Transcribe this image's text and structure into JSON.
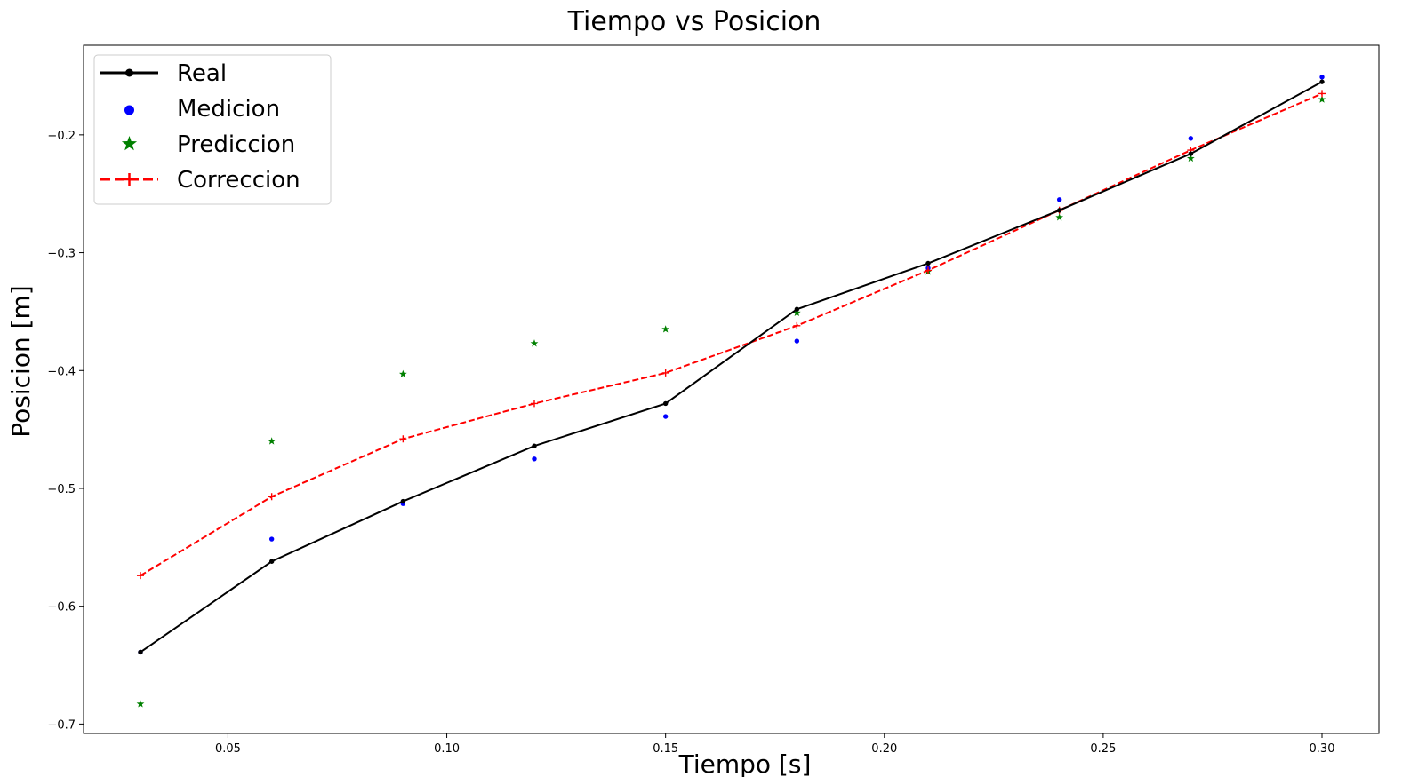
{
  "chart_data": {
    "type": "line",
    "title": "Tiempo vs Posicion",
    "xlabel": "Tiempo [s]",
    "ylabel": "Posicion [m]",
    "xlim": [
      0.017,
      0.313
    ],
    "ylim": [
      -0.708,
      -0.124
    ],
    "xticks": [
      0.05,
      0.1,
      0.15,
      0.2,
      0.25,
      0.3
    ],
    "xtick_labels": [
      "0.05",
      "0.10",
      "0.15",
      "0.20",
      "0.25",
      "0.30"
    ],
    "yticks": [
      -0.2,
      -0.3,
      -0.4,
      -0.5,
      -0.6,
      -0.7
    ],
    "ytick_labels": [
      "−0.2",
      "−0.3",
      "−0.4",
      "−0.5",
      "−0.6",
      "−0.7"
    ],
    "grid": false,
    "legend_position": "top-left",
    "x": [
      0.03,
      0.06,
      0.09,
      0.12,
      0.15,
      0.18,
      0.21,
      0.24,
      0.27,
      0.3
    ],
    "series": [
      {
        "name": "Real",
        "style": "solid-line-dot",
        "color": "#000000",
        "values": [
          -0.639,
          -0.562,
          -0.511,
          -0.464,
          -0.428,
          -0.348,
          -0.309,
          -0.264,
          -0.216,
          -0.155
        ]
      },
      {
        "name": "Medicion",
        "style": "dot",
        "color": "#0000ff",
        "values": [
          -0.639,
          -0.543,
          -0.513,
          -0.475,
          -0.439,
          -0.375,
          -0.313,
          -0.255,
          -0.203,
          -0.151
        ]
      },
      {
        "name": "Prediccion",
        "style": "star",
        "color": "#008000",
        "values": [
          -0.683,
          -0.46,
          -0.403,
          -0.377,
          -0.365,
          -0.351,
          -0.316,
          -0.27,
          -0.22,
          -0.17
        ]
      },
      {
        "name": "Correccion",
        "style": "dashed-line-plus",
        "color": "#ff0000",
        "values": [
          -0.574,
          -0.507,
          -0.458,
          -0.428,
          -0.402,
          -0.362,
          -0.315,
          -0.264,
          -0.213,
          -0.165
        ]
      }
    ]
  }
}
